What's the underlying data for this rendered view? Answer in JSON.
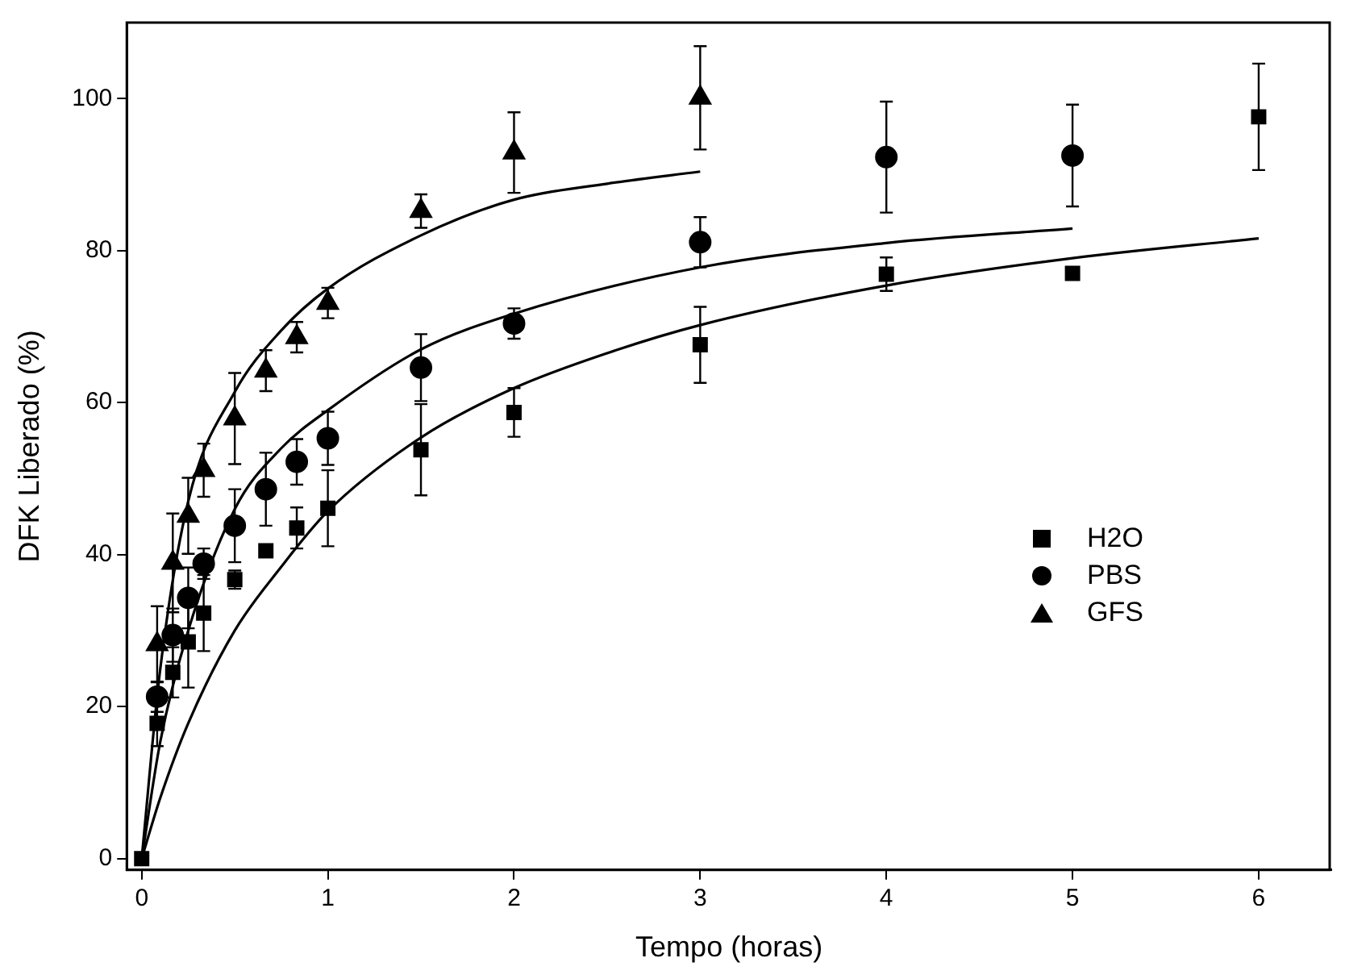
{
  "chart_data": {
    "type": "scatter",
    "xlabel": "Tempo (horas)",
    "ylabel": "DFK Liberado (%)",
    "xlim": [
      -0.08,
      6.39
    ],
    "ylim": [
      -1.5,
      110
    ],
    "xticks": [
      0,
      1,
      2,
      3,
      4,
      5,
      6
    ],
    "yticks": [
      0,
      20,
      40,
      60,
      80,
      100
    ],
    "grid": false,
    "legend": "right",
    "series": [
      {
        "name": "H2O",
        "marker": "square",
        "color": "#000000",
        "x": [
          0,
          0.083,
          0.167,
          0.25,
          0.333,
          0.5,
          0.667,
          0.833,
          1,
          1.5,
          2,
          3,
          4,
          5,
          6
        ],
        "values": [
          0,
          17.8,
          24.5,
          28.5,
          32.3,
          36.7,
          40.5,
          43.5,
          46.1,
          53.8,
          58.7,
          67.6,
          76.9,
          77,
          97.6
        ],
        "errors": [
          null,
          3,
          3.3,
          6,
          5,
          1.2,
          null,
          2.7,
          5,
          6,
          3.2,
          5,
          2.2,
          null,
          7
        ]
      },
      {
        "name": "PBS",
        "marker": "circle",
        "color": "#000000",
        "x": [
          0.083,
          0.167,
          0.25,
          0.333,
          0.5,
          0.667,
          0.833,
          1,
          1.5,
          2,
          3,
          4,
          5
        ],
        "values": [
          21.3,
          29.4,
          34.3,
          38.8,
          43.8,
          48.6,
          52.2,
          55.3,
          64.6,
          70.4,
          81.1,
          92.3,
          92.5
        ],
        "errors": [
          2,
          3.5,
          4,
          2,
          4.8,
          4.8,
          3,
          3.5,
          4.4,
          2,
          3.3,
          7.3,
          6.7
        ]
      },
      {
        "name": "GFS",
        "marker": "triangle",
        "color": "#000000",
        "x": [
          0.083,
          0.167,
          0.25,
          0.333,
          0.5,
          0.667,
          0.833,
          1,
          1.5,
          2,
          3
        ],
        "values": [
          28.2,
          38.9,
          45.1,
          51.1,
          57.9,
          64.2,
          68.6,
          73.1,
          85.2,
          92.9,
          100.1
        ],
        "errors": [
          5,
          6.5,
          5,
          3.5,
          6,
          2.7,
          2,
          2,
          2.2,
          5.3,
          6.8
        ]
      },
      {
        "type": "line",
        "marker": "none",
        "color": "#000000",
        "x": [
          0,
          0.1,
          0.25,
          0.5,
          0.75,
          1,
          1.5,
          2,
          2.5,
          3,
          4,
          5,
          6
        ],
        "values": [
          0,
          8,
          17.8,
          30,
          38.4,
          45.7,
          55.4,
          61.9,
          66.5,
          70.2,
          75.4,
          79,
          81.6
        ]
      },
      {
        "type": "line",
        "marker": "none",
        "color": "#000000",
        "x": [
          0,
          0.1,
          0.25,
          0.5,
          0.75,
          1,
          1.5,
          2,
          3,
          4,
          5
        ],
        "values": [
          0,
          15.4,
          30,
          46,
          54,
          59,
          67,
          71.7,
          77.8,
          81,
          82.9
        ]
      },
      {
        "type": "line",
        "marker": "none",
        "color": "#000000",
        "x": [
          0,
          0.1,
          0.25,
          0.5,
          0.75,
          1,
          1.5,
          2,
          2.5,
          3
        ],
        "values": [
          0,
          25,
          47,
          61.4,
          69.5,
          75,
          82,
          86.7,
          88.8,
          90.4
        ]
      }
    ]
  }
}
